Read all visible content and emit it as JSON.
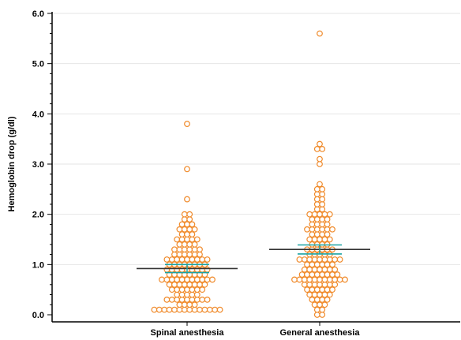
{
  "chart_data": {
    "type": "scatter",
    "title": "",
    "ylabel": "Hemoglobin drop (g/dl)",
    "xlabel": "",
    "ylim": [
      0,
      6
    ],
    "yticks": [
      "0.0",
      "1.0",
      "2.0",
      "3.0",
      "4.0",
      "5.0",
      "6.0"
    ],
    "grid": true,
    "categories": [
      "Spinal anesthesia",
      "General anesthesia"
    ],
    "colors": {
      "points": "#f08a2a",
      "mean_line": "#333333",
      "ci_line": "#1aa3a3",
      "axis": "#000000",
      "grid": "#e6e6e6"
    },
    "series": [
      {
        "category": "Spinal anesthesia",
        "mean": 0.92,
        "ci": [
          0.84,
          1.0
        ],
        "values": [
          0.1,
          0.1,
          0.1,
          0.1,
          0.1,
          0.1,
          0.1,
          0.1,
          0.1,
          0.1,
          0.1,
          0.1,
          0.1,
          0.1,
          0.2,
          0.2,
          0.2,
          0.2,
          0.3,
          0.3,
          0.3,
          0.3,
          0.3,
          0.3,
          0.3,
          0.3,
          0.3,
          0.4,
          0.4,
          0.4,
          0.4,
          0.4,
          0.5,
          0.5,
          0.5,
          0.5,
          0.5,
          0.5,
          0.5,
          0.6,
          0.6,
          0.6,
          0.6,
          0.6,
          0.6,
          0.6,
          0.6,
          0.7,
          0.7,
          0.7,
          0.7,
          0.7,
          0.7,
          0.7,
          0.7,
          0.7,
          0.7,
          0.7,
          0.8,
          0.8,
          0.8,
          0.8,
          0.8,
          0.8,
          0.8,
          0.8,
          0.9,
          0.9,
          0.9,
          0.9,
          0.9,
          0.9,
          0.9,
          0.9,
          0.9,
          1.0,
          1.0,
          1.0,
          1.0,
          1.0,
          1.0,
          1.0,
          1.0,
          1.1,
          1.1,
          1.1,
          1.1,
          1.1,
          1.1,
          1.1,
          1.1,
          1.1,
          1.2,
          1.2,
          1.2,
          1.2,
          1.2,
          1.2,
          1.3,
          1.3,
          1.3,
          1.3,
          1.3,
          1.3,
          1.4,
          1.4,
          1.4,
          1.4,
          1.5,
          1.5,
          1.5,
          1.5,
          1.5,
          1.6,
          1.6,
          1.6,
          1.7,
          1.7,
          1.7,
          1.7,
          1.8,
          1.8,
          1.8,
          1.9,
          1.9,
          2.0,
          2.0,
          2.3,
          2.9,
          3.8
        ]
      },
      {
        "category": "General anesthesia",
        "mean": 1.3,
        "ci": [
          1.21,
          1.39
        ],
        "values": [
          0.0,
          0.0,
          0.1,
          0.1,
          0.2,
          0.2,
          0.2,
          0.3,
          0.3,
          0.3,
          0.3,
          0.4,
          0.4,
          0.4,
          0.4,
          0.4,
          0.5,
          0.5,
          0.5,
          0.5,
          0.5,
          0.5,
          0.6,
          0.6,
          0.6,
          0.6,
          0.6,
          0.6,
          0.6,
          0.7,
          0.7,
          0.7,
          0.7,
          0.7,
          0.7,
          0.7,
          0.7,
          0.7,
          0.7,
          0.7,
          0.8,
          0.8,
          0.8,
          0.8,
          0.8,
          0.8,
          0.8,
          0.8,
          0.9,
          0.9,
          0.9,
          0.9,
          0.9,
          0.9,
          0.9,
          1.0,
          1.0,
          1.0,
          1.0,
          1.0,
          1.0,
          1.1,
          1.1,
          1.1,
          1.1,
          1.1,
          1.1,
          1.1,
          1.1,
          1.1,
          1.2,
          1.2,
          1.2,
          1.2,
          1.2,
          1.3,
          1.3,
          1.3,
          1.3,
          1.3,
          1.3,
          1.4,
          1.4,
          1.4,
          1.4,
          1.5,
          1.5,
          1.5,
          1.5,
          1.5,
          1.6,
          1.6,
          1.6,
          1.6,
          1.7,
          1.7,
          1.7,
          1.7,
          1.7,
          1.7,
          1.8,
          1.8,
          1.8,
          1.8,
          1.9,
          1.9,
          1.9,
          1.9,
          2.0,
          2.0,
          2.0,
          2.0,
          2.0,
          2.1,
          2.1,
          2.2,
          2.2,
          2.3,
          2.3,
          2.4,
          2.4,
          2.5,
          2.5,
          2.6,
          3.0,
          3.1,
          3.3,
          3.3,
          3.4,
          5.6
        ]
      }
    ]
  }
}
